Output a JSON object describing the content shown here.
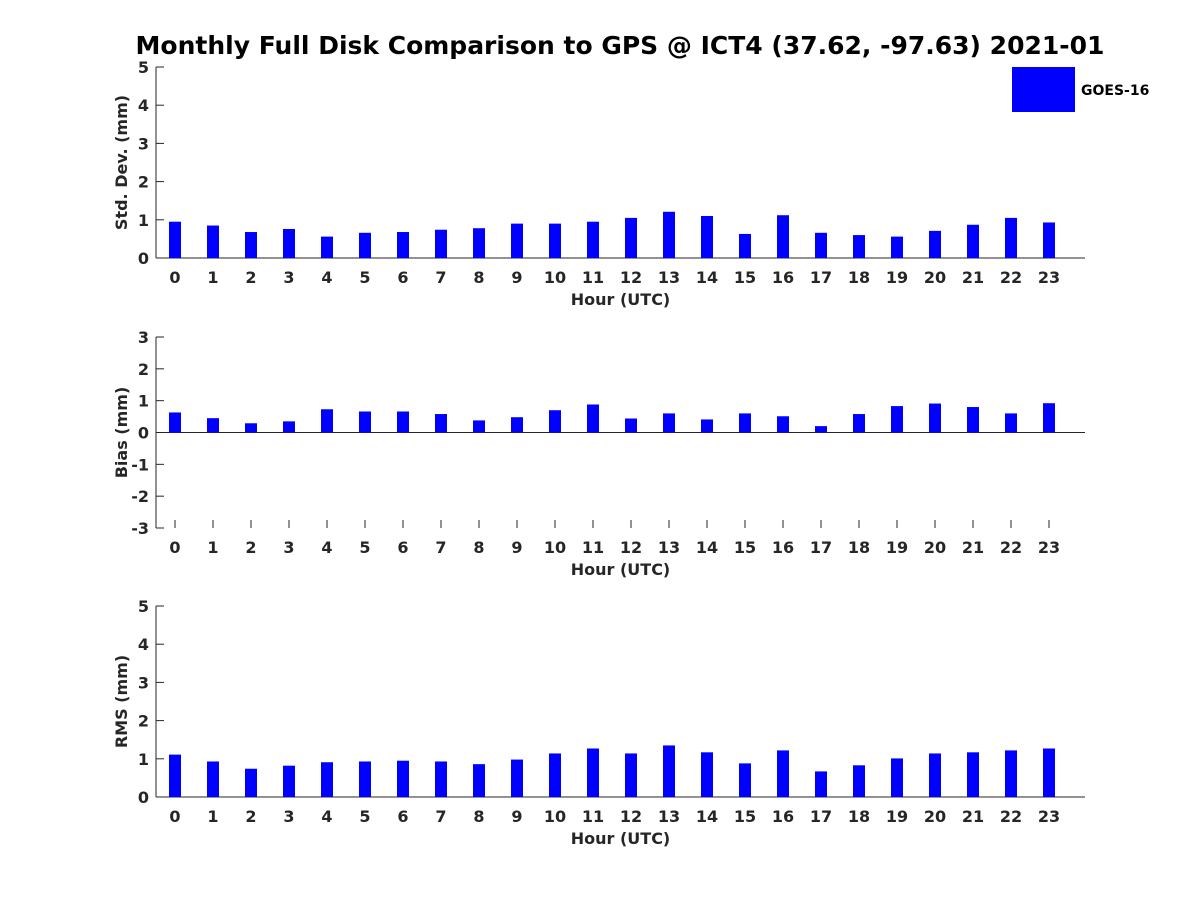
{
  "title": "Monthly Full Disk Comparison to GPS @ ICT4 (37.62, -97.63) 2021-01",
  "legend": {
    "label": "GOES-16",
    "color": "#0000ff",
    "position": "top-right"
  },
  "colors": {
    "bar": "#0000ff",
    "axis": "#262626",
    "title": "#000000"
  },
  "chart_data": [
    {
      "type": "bar",
      "name": "std-dev",
      "xlabel": "Hour (UTC)",
      "ylabel": "Std. Dev. (mm)",
      "categories": [
        "0",
        "1",
        "2",
        "3",
        "4",
        "5",
        "6",
        "7",
        "8",
        "9",
        "10",
        "11",
        "12",
        "13",
        "14",
        "15",
        "16",
        "17",
        "18",
        "19",
        "20",
        "21",
        "22",
        "23"
      ],
      "ylim": [
        0,
        5
      ],
      "yticks": [
        "0",
        "1",
        "2",
        "3",
        "4",
        "5"
      ],
      "grid": false,
      "series": [
        {
          "name": "GOES-16",
          "values": [
            0.95,
            0.85,
            0.68,
            0.76,
            0.56,
            0.66,
            0.68,
            0.74,
            0.78,
            0.9,
            0.9,
            0.95,
            1.05,
            1.21,
            1.1,
            0.63,
            1.12,
            0.66,
            0.6,
            0.56,
            0.71,
            0.87,
            1.05,
            0.93
          ]
        }
      ]
    },
    {
      "type": "bar",
      "name": "bias",
      "xlabel": "Hour (UTC)",
      "ylabel": "Bias (mm)",
      "categories": [
        "0",
        "1",
        "2",
        "3",
        "4",
        "5",
        "6",
        "7",
        "8",
        "9",
        "10",
        "11",
        "12",
        "13",
        "14",
        "15",
        "16",
        "17",
        "18",
        "19",
        "20",
        "21",
        "22",
        "23"
      ],
      "ylim": [
        -3,
        3
      ],
      "yticks": [
        "-3",
        "-2",
        "-1",
        "0",
        "1",
        "2",
        "3"
      ],
      "grid": false,
      "series": [
        {
          "name": "GOES-16",
          "values": [
            0.63,
            0.45,
            0.29,
            0.35,
            0.73,
            0.66,
            0.66,
            0.58,
            0.38,
            0.48,
            0.7,
            0.88,
            0.44,
            0.6,
            0.41,
            0.6,
            0.51,
            0.2,
            0.58,
            0.83,
            0.91,
            0.8,
            0.6,
            0.92
          ]
        }
      ]
    },
    {
      "type": "bar",
      "name": "rms",
      "xlabel": "Hour (UTC)",
      "ylabel": "RMS (mm)",
      "categories": [
        "0",
        "1",
        "2",
        "3",
        "4",
        "5",
        "6",
        "7",
        "8",
        "9",
        "10",
        "11",
        "12",
        "13",
        "14",
        "15",
        "16",
        "17",
        "18",
        "19",
        "20",
        "21",
        "22",
        "23"
      ],
      "ylim": [
        0,
        5
      ],
      "yticks": [
        "0",
        "1",
        "2",
        "3",
        "4",
        "5"
      ],
      "grid": false,
      "series": [
        {
          "name": "GOES-16",
          "values": [
            1.11,
            0.93,
            0.74,
            0.82,
            0.91,
            0.93,
            0.95,
            0.93,
            0.86,
            0.98,
            1.14,
            1.27,
            1.14,
            1.35,
            1.17,
            0.88,
            1.22,
            0.67,
            0.83,
            1.01,
            1.14,
            1.17,
            1.22,
            1.27
          ]
        }
      ]
    }
  ]
}
